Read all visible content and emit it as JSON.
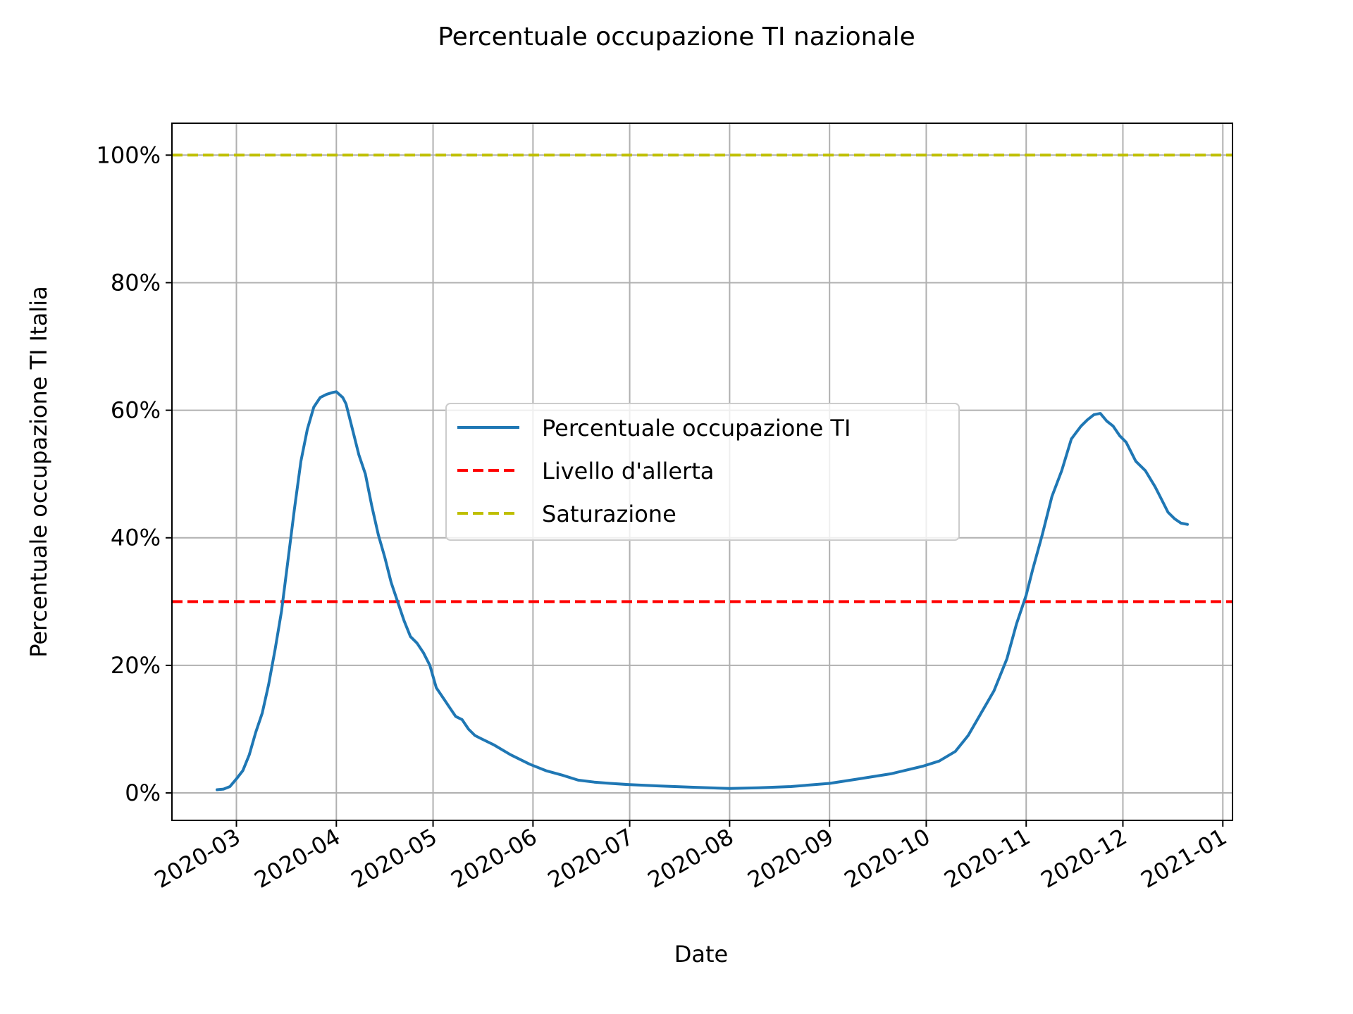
{
  "chart_data": {
    "type": "line",
    "title": "Percentuale occupazione TI nazionale",
    "xlabel": "Date",
    "ylabel": "Percentuale occupazione TI Italia",
    "xlim": [
      "2020-02-10",
      "2021-01-04"
    ],
    "ylim": [
      -4.3,
      105
    ],
    "grid": true,
    "legend_position": "center",
    "x_ticks": [
      "2020-03",
      "2020-04",
      "2020-05",
      "2020-06",
      "2020-07",
      "2020-08",
      "2020-09",
      "2020-10",
      "2020-11",
      "2020-12",
      "2021-01"
    ],
    "x_tick_dates": [
      "2020-03-01",
      "2020-04-01",
      "2020-05-01",
      "2020-06-01",
      "2020-07-01",
      "2020-08-01",
      "2020-09-01",
      "2020-10-01",
      "2020-11-01",
      "2020-12-01",
      "2021-01-01"
    ],
    "y_ticks": [
      0,
      20,
      40,
      60,
      80,
      100
    ],
    "y_tick_labels": [
      "0%",
      "20%",
      "40%",
      "60%",
      "80%",
      "100%"
    ],
    "series": [
      {
        "name": "Percentuale occupazione TI",
        "color": "#1f77b4",
        "style": "solid",
        "x": [
          "2020-02-24",
          "2020-02-26",
          "2020-02-28",
          "2020-03-01",
          "2020-03-03",
          "2020-03-05",
          "2020-03-07",
          "2020-03-09",
          "2020-03-11",
          "2020-03-13",
          "2020-03-15",
          "2020-03-17",
          "2020-03-19",
          "2020-03-21",
          "2020-03-23",
          "2020-03-25",
          "2020-03-27",
          "2020-03-29",
          "2020-03-31",
          "2020-04-01",
          "2020-04-03",
          "2020-04-04",
          "2020-04-06",
          "2020-04-08",
          "2020-04-10",
          "2020-04-12",
          "2020-04-14",
          "2020-04-16",
          "2020-04-18",
          "2020-04-20",
          "2020-04-22",
          "2020-04-24",
          "2020-04-26",
          "2020-04-28",
          "2020-04-30",
          "2020-05-02",
          "2020-05-04",
          "2020-05-06",
          "2020-05-08",
          "2020-05-10",
          "2020-05-12",
          "2020-05-14",
          "2020-05-16",
          "2020-05-20",
          "2020-05-25",
          "2020-05-31",
          "2020-06-05",
          "2020-06-10",
          "2020-06-15",
          "2020-06-20",
          "2020-06-25",
          "2020-07-01",
          "2020-07-10",
          "2020-07-20",
          "2020-08-01",
          "2020-08-10",
          "2020-08-20",
          "2020-09-01",
          "2020-09-10",
          "2020-09-20",
          "2020-09-30",
          "2020-10-05",
          "2020-10-10",
          "2020-10-14",
          "2020-10-18",
          "2020-10-22",
          "2020-10-26",
          "2020-10-29",
          "2020-11-01",
          "2020-11-03",
          "2020-11-06",
          "2020-11-09",
          "2020-11-12",
          "2020-11-15",
          "2020-11-18",
          "2020-11-20",
          "2020-11-22",
          "2020-11-24",
          "2020-11-26",
          "2020-11-28",
          "2020-11-30",
          "2020-12-02",
          "2020-12-05",
          "2020-12-08",
          "2020-12-11",
          "2020-12-13",
          "2020-12-15",
          "2020-12-17",
          "2020-12-19",
          "2020-12-21"
        ],
        "y": [
          0.5,
          0.6,
          1.0,
          2.2,
          3.5,
          6.0,
          9.5,
          12.5,
          17.0,
          22.5,
          28.5,
          36.5,
          44.5,
          52.0,
          57.0,
          60.5,
          62.0,
          62.5,
          62.8,
          62.9,
          62.0,
          61.0,
          57.0,
          53.0,
          50.0,
          45.0,
          40.5,
          37.0,
          33.0,
          30.0,
          27.0,
          24.5,
          23.5,
          22.0,
          20.0,
          16.5,
          15.0,
          13.5,
          12.0,
          11.5,
          10.0,
          9.0,
          8.5,
          7.5,
          6.0,
          4.5,
          3.5,
          2.8,
          2.0,
          1.7,
          1.5,
          1.3,
          1.1,
          0.9,
          0.7,
          0.8,
          1.0,
          1.5,
          2.2,
          3.0,
          4.2,
          5.0,
          6.5,
          9.0,
          12.5,
          16.0,
          21.0,
          26.5,
          31.0,
          35.0,
          40.5,
          46.5,
          50.5,
          55.5,
          57.5,
          58.5,
          59.3,
          59.5,
          58.3,
          57.5,
          56.0,
          55.0,
          52.0,
          50.5,
          48.0,
          46.0,
          44.0,
          43.0,
          42.3,
          42.1
        ]
      },
      {
        "name": "Livello d'allerta",
        "color": "#ff0000",
        "style": "dashed",
        "constant": 30
      },
      {
        "name": "Saturazione",
        "color": "#bfbf00",
        "style": "dashed",
        "constant": 100
      }
    ]
  }
}
